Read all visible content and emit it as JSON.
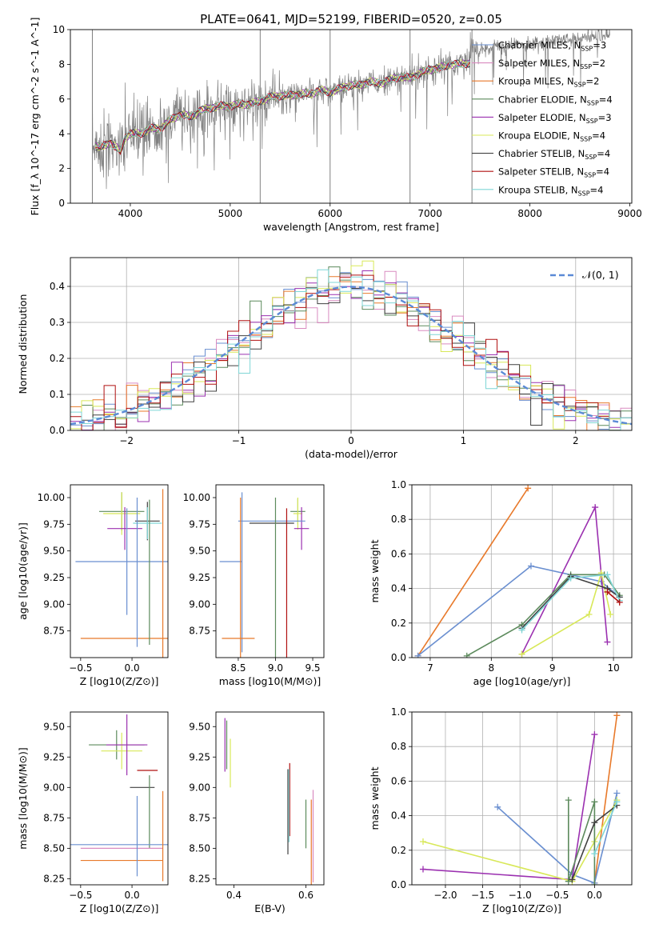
{
  "figure": {
    "title": "PLATE=0641, MJD=52199, FIBERID=0520, z=0.05"
  },
  "legend_models": [
    {
      "label": "Chabrier MILES, N",
      "sub": "SSP",
      "suffix": "=3",
      "color": "#6a8fd0"
    },
    {
      "label": "Salpeter MILES, N",
      "sub": "SSP",
      "suffix": "=2",
      "color": "#d98bc0"
    },
    {
      "label": "Kroupa MILES, N",
      "sub": "SSP",
      "suffix": "=2",
      "color": "#e8792a"
    },
    {
      "label": "Chabrier ELODIE, N",
      "sub": "SSP",
      "suffix": "=4",
      "color": "#5c8a5c"
    },
    {
      "label": "Salpeter ELODIE, N",
      "sub": "SSP",
      "suffix": "=3",
      "color": "#9b30b0"
    },
    {
      "label": "Kroupa ELODIE, N",
      "sub": "SSP",
      "suffix": "=4",
      "color": "#d8e858"
    },
    {
      "label": "Chabrier STELIB, N",
      "sub": "SSP",
      "suffix": "=4",
      "color": "#404040"
    },
    {
      "label": "Salpeter STELIB, N",
      "sub": "SSP",
      "suffix": "=4",
      "color": "#b01010"
    },
    {
      "label": "Kroupa STELIB, N",
      "sub": "SSP",
      "suffix": "=4",
      "color": "#7fd6d6"
    }
  ],
  "chart_data": [
    {
      "id": "spectrum",
      "type": "line",
      "xlabel": "wavelength [Angstrom, rest frame]",
      "ylabel": "Flux [f_λ 10^-17 erg cm^-2 s^-1 A^-1]",
      "xlim": [
        3400,
        9020
      ],
      "ylim": [
        0,
        10
      ],
      "xticks": [
        4000,
        5000,
        6000,
        7000,
        8000,
        9000
      ],
      "yticks": [
        0,
        2,
        4,
        6,
        8,
        10
      ],
      "grid": false,
      "legend": "upper-right",
      "model_curve": {
        "x": [
          3650,
          3700,
          3800,
          3900,
          3950,
          4000,
          4100,
          4200,
          4300,
          4400,
          4500,
          4600,
          4700,
          4800,
          4900,
          5000,
          5100,
          5200,
          5300,
          5400,
          5500,
          5600,
          5700,
          5800,
          5900,
          6000,
          6100,
          6200,
          6300,
          6400,
          6500,
          6600,
          6700,
          6800,
          6900,
          7000,
          7100,
          7200,
          7300,
          7400
        ],
        "y": [
          3.3,
          3.2,
          3.5,
          3.0,
          3.8,
          4.0,
          4.0,
          4.3,
          4.3,
          4.8,
          5.1,
          5.0,
          5.3,
          5.5,
          5.6,
          5.6,
          5.7,
          5.7,
          5.9,
          6.1,
          6.2,
          6.2,
          6.3,
          6.3,
          6.5,
          6.4,
          6.6,
          6.8,
          6.8,
          7.0,
          6.9,
          7.1,
          7.3,
          7.2,
          7.5,
          7.7,
          7.8,
          8.0,
          8.0,
          8.1
        ]
      },
      "observed_note": "noisy observed spectrum in grey, extending to ~8800 Å"
    },
    {
      "id": "residuals",
      "type": "line",
      "xlabel": "(data-model)/error",
      "ylabel": "Normed distribution",
      "xlim": [
        -2.5,
        2.5
      ],
      "ylim": [
        0,
        0.48
      ],
      "xticks": [
        -2,
        -1,
        0,
        1,
        2
      ],
      "yticks": [
        0.0,
        0.1,
        0.2,
        0.3,
        0.4
      ],
      "grid": true,
      "legend_label": "𝒩(0, 1)",
      "gaussian": {
        "mu": 0,
        "sigma": 1
      }
    },
    {
      "id": "age_vs_Z",
      "type": "scatter",
      "xlabel": "Z [log10(Z/Z⊙)]",
      "ylabel": "age [log10(age/yr)]",
      "xlim": [
        -0.6,
        0.35
      ],
      "ylim": [
        8.5,
        10.12
      ],
      "xticks": [
        -0.5,
        0.0
      ],
      "yticks": [
        8.75,
        9.0,
        9.25,
        9.5,
        9.75,
        10.0
      ],
      "points": [
        {
          "x": -0.1,
          "y": 9.87,
          "xerr": 0.22,
          "yerr": 0.18,
          "color": "#5c8a5c"
        },
        {
          "x": -0.1,
          "y": 9.85,
          "xerr": 0.18,
          "yerr": 0.2,
          "color": "#d8e858"
        },
        {
          "x": -0.07,
          "y": 9.71,
          "xerr": 0.17,
          "yerr": 0.2,
          "color": "#9b30b0"
        },
        {
          "x": 0.15,
          "y": 9.78,
          "xerr": 0.12,
          "yerr": 0.18,
          "color": "#404040"
        },
        {
          "x": 0.15,
          "y": 9.76,
          "xerr": 0.14,
          "yerr": 0.15,
          "color": "#7fd6d6"
        },
        {
          "x": -0.05,
          "y": 9.4,
          "xerr": 0.5,
          "yerr": 0.5,
          "color": "#6a8fd0"
        },
        {
          "x": 0.3,
          "y": 8.68,
          "xerr": 0.0,
          "yerr": 1.4,
          "color": "#e8792a"
        },
        {
          "x": 0.0,
          "y": 8.68,
          "xerr": 0.5,
          "yerr": 0.0,
          "color": "#e8792a"
        },
        {
          "x": 0.17,
          "y": 9.3,
          "xerr": 0.0,
          "yerr": 0.68,
          "color": "#5c8a5c"
        },
        {
          "x": 0.05,
          "y": 9.3,
          "xerr": 0.0,
          "yerr": 0.7,
          "color": "#6a8fd0"
        }
      ]
    },
    {
      "id": "age_vs_mass",
      "type": "scatter",
      "xlabel": "mass [log10(M/M⊙)]",
      "ylabel": "",
      "xlim": [
        8.2,
        9.65
      ],
      "ylim": [
        8.5,
        10.12
      ],
      "xticks": [
        8.5,
        9.0,
        9.5
      ],
      "yticks": [
        8.75,
        9.0,
        9.25,
        9.5,
        9.75,
        10.0
      ],
      "points": [
        {
          "x": 9.3,
          "y": 9.87,
          "xerr": 0.1,
          "yerr": 0.12,
          "color": "#5c8a5c"
        },
        {
          "x": 9.3,
          "y": 9.85,
          "xerr": 0.06,
          "yerr": 0.15,
          "color": "#d8e858"
        },
        {
          "x": 9.35,
          "y": 9.71,
          "xerr": 0.1,
          "yerr": 0.2,
          "color": "#9b30b0"
        },
        {
          "x": 8.95,
          "y": 9.76,
          "xerr": 0.3,
          "yerr": 0.0,
          "color": "#404040"
        },
        {
          "x": 8.95,
          "y": 9.78,
          "xerr": 0.45,
          "yerr": 0.0,
          "color": "#6a8fd0"
        },
        {
          "x": 8.4,
          "y": 9.4,
          "xerr": 0.15,
          "yerr": 0.0,
          "color": "#6a8fd0"
        },
        {
          "x": 8.55,
          "y": 9.3,
          "xerr": 0.0,
          "yerr": 0.75,
          "color": "#6a8fd0"
        },
        {
          "x": 8.53,
          "y": 9.0,
          "xerr": 0.0,
          "yerr": 1.0,
          "color": "#e8792a"
        },
        {
          "x": 8.5,
          "y": 8.68,
          "xerr": 0.22,
          "yerr": 0.0,
          "color": "#e8792a"
        },
        {
          "x": 9.0,
          "y": 9.2,
          "xerr": 0.0,
          "yerr": 0.8,
          "color": "#5c8a5c"
        },
        {
          "x": 9.15,
          "y": 9.2,
          "xerr": 0.0,
          "yerr": 0.7,
          "color": "#b01010"
        }
      ]
    },
    {
      "id": "massweight_vs_age",
      "type": "line",
      "xlabel": "age [log10(age/yr)]",
      "ylabel": "mass weight",
      "xlim": [
        6.7,
        10.3
      ],
      "ylim": [
        0,
        1.0
      ],
      "xticks": [
        7,
        8,
        9,
        10
      ],
      "yticks": [
        0.0,
        0.2,
        0.4,
        0.6,
        0.8,
        1.0
      ],
      "grid": true,
      "series": [
        {
          "color": "#e8792a",
          "x": [
            6.8,
            8.6
          ],
          "y": [
            0.01,
            0.98
          ]
        },
        {
          "color": "#6a8fd0",
          "x": [
            6.8,
            8.65,
            9.8,
            10.1
          ],
          "y": [
            0.01,
            0.53,
            0.44,
            0.35
          ]
        },
        {
          "color": "#9b30b0",
          "x": [
            8.5,
            9.7,
            9.9
          ],
          "y": [
            0.02,
            0.87,
            0.09
          ]
        },
        {
          "color": "#d8e858",
          "x": [
            8.5,
            9.6,
            9.8,
            9.95
          ],
          "y": [
            0.02,
            0.25,
            0.49,
            0.25
          ]
        },
        {
          "color": "#5c8a5c",
          "x": [
            7.6,
            8.5,
            9.3,
            9.85,
            10.1
          ],
          "y": [
            0.01,
            0.19,
            0.48,
            0.48,
            0.36
          ]
        },
        {
          "color": "#404040",
          "x": [
            8.5,
            9.3,
            9.9,
            10.1
          ],
          "y": [
            0.17,
            0.47,
            0.4,
            0.35
          ]
        },
        {
          "color": "#7fd6d6",
          "x": [
            8.5,
            9.3,
            9.9,
            10.1
          ],
          "y": [
            0.16,
            0.46,
            0.48,
            0.33
          ]
        },
        {
          "color": "#b01010",
          "x": [
            9.9,
            10.1
          ],
          "y": [
            0.38,
            0.32
          ]
        }
      ]
    },
    {
      "id": "mass_vs_Z",
      "type": "scatter",
      "xlabel": "Z [log10(Z/Z⊙)]",
      "ylabel": "mass [log10(M/M⊙)]",
      "xlim": [
        -0.6,
        0.35
      ],
      "ylim": [
        8.2,
        9.62
      ],
      "xticks": [
        -0.5,
        0.0
      ],
      "yticks": [
        8.25,
        8.5,
        8.75,
        9.0,
        9.25,
        9.5
      ],
      "points": [
        {
          "x": -0.15,
          "y": 9.35,
          "xerr": 0.27,
          "yerr": 0.12,
          "color": "#5c8a5c"
        },
        {
          "x": -0.1,
          "y": 9.3,
          "xerr": 0.2,
          "yerr": 0.15,
          "color": "#d8e858"
        },
        {
          "x": -0.05,
          "y": 9.35,
          "xerr": 0.2,
          "yerr": 0.25,
          "color": "#9b30b0"
        },
        {
          "x": 0.15,
          "y": 9.14,
          "xerr": 0.1,
          "yerr": 0.0,
          "color": "#b01010"
        },
        {
          "x": 0.1,
          "y": 9.0,
          "xerr": 0.12,
          "yerr": 0.0,
          "color": "#404040"
        },
        {
          "x": 0.17,
          "y": 8.8,
          "xerr": 0.0,
          "yerr": 0.3,
          "color": "#5c8a5c"
        },
        {
          "x": -0.1,
          "y": 8.53,
          "xerr": 0.5,
          "yerr": 0.0,
          "color": "#6a8fd0"
        },
        {
          "x": -0.1,
          "y": 8.5,
          "xerr": 0.4,
          "yerr": 0.0,
          "color": "#d98bc0"
        },
        {
          "x": -0.1,
          "y": 8.4,
          "xerr": 0.4,
          "yerr": 0.0,
          "color": "#e8792a"
        },
        {
          "x": 0.3,
          "y": 8.6,
          "xerr": 0.0,
          "yerr": 0.37,
          "color": "#e8792a"
        },
        {
          "x": 0.05,
          "y": 8.6,
          "xerr": 0.0,
          "yerr": 0.33,
          "color": "#6a8fd0"
        }
      ]
    },
    {
      "id": "mass_vs_EBV",
      "type": "scatter",
      "xlabel": "E(B-V)",
      "ylabel": "",
      "xlim": [
        0.35,
        0.65
      ],
      "ylim": [
        8.2,
        9.62
      ],
      "xticks": [
        0.4,
        0.6
      ],
      "yticks": [
        8.25,
        8.5,
        8.75,
        9.0,
        9.25,
        9.5
      ],
      "points": [
        {
          "x": 0.375,
          "y": 9.35,
          "xerr": 0.0,
          "yerr": 0.22,
          "color": "#9b30b0"
        },
        {
          "x": 0.38,
          "y": 9.35,
          "xerr": 0.0,
          "yerr": 0.2,
          "color": "#5c8a5c"
        },
        {
          "x": 0.39,
          "y": 9.2,
          "xerr": 0.0,
          "yerr": 0.2,
          "color": "#d8e858"
        },
        {
          "x": 0.555,
          "y": 8.9,
          "xerr": 0.0,
          "yerr": 0.3,
          "color": "#b01010"
        },
        {
          "x": 0.553,
          "y": 8.85,
          "xerr": 0.0,
          "yerr": 0.3,
          "color": "#7fd6d6"
        },
        {
          "x": 0.55,
          "y": 8.8,
          "xerr": 0.0,
          "yerr": 0.35,
          "color": "#404040"
        },
        {
          "x": 0.615,
          "y": 8.55,
          "xerr": 0.0,
          "yerr": 0.35,
          "color": "#e8792a"
        },
        {
          "x": 0.62,
          "y": 8.6,
          "xerr": 0.0,
          "yerr": 0.38,
          "color": "#d98bc0"
        },
        {
          "x": 0.6,
          "y": 8.7,
          "xerr": 0.0,
          "yerr": 0.2,
          "color": "#5c8a5c"
        }
      ]
    },
    {
      "id": "massweight_vs_Z",
      "type": "line",
      "xlabel": "Z [log10(Z/Z⊙)]",
      "ylabel": "mass weight",
      "xlim": [
        -2.45,
        0.5
      ],
      "ylim": [
        0,
        1.0
      ],
      "xticks": [
        -2.0,
        -1.5,
        -1.0,
        -0.5,
        0.0
      ],
      "yticks": [
        0.0,
        0.2,
        0.4,
        0.6,
        0.8,
        1.0
      ],
      "grid": true,
      "series": [
        {
          "color": "#e8792a",
          "x": [
            0.0,
            0.3
          ],
          "y": [
            0.01,
            0.98
          ]
        },
        {
          "color": "#6a8fd0",
          "x": [
            -1.3,
            -0.3,
            0.0,
            0.3
          ],
          "y": [
            0.45,
            0.06,
            0.01,
            0.53
          ]
        },
        {
          "color": "#9b30b0",
          "x": [
            -2.3,
            -0.3,
            0.0
          ],
          "y": [
            0.09,
            0.03,
            0.87
          ]
        },
        {
          "color": "#d8e858",
          "x": [
            -2.3,
            -0.3,
            0.0,
            0.3
          ],
          "y": [
            0.25,
            0.02,
            0.25,
            0.49
          ]
        },
        {
          "color": "#5c8a5c",
          "x": [
            -0.35,
            -0.35,
            0.0,
            0.0
          ],
          "y": [
            0.49,
            0.02,
            0.48,
            0.0
          ]
        },
        {
          "color": "#404040",
          "x": [
            -0.3,
            0.0,
            0.3
          ],
          "y": [
            0.03,
            0.36,
            0.46
          ]
        },
        {
          "color": "#7fd6d6",
          "x": [
            0.0,
            0.3
          ],
          "y": [
            0.18,
            0.48
          ]
        }
      ]
    }
  ]
}
